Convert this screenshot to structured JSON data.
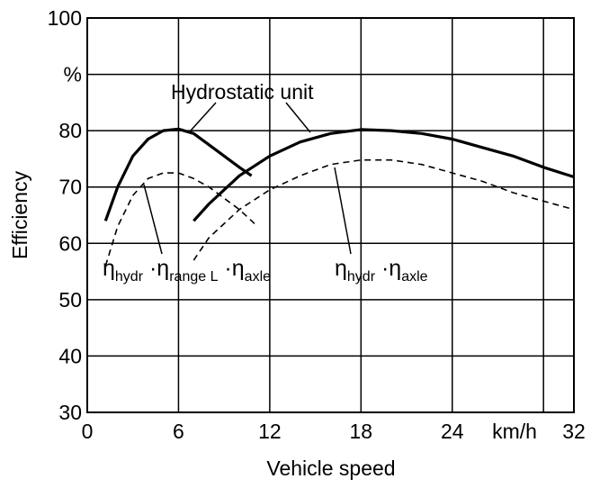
{
  "chart_data": {
    "type": "line",
    "xlabel": "Vehicle speed",
    "ylabel": "Efficiency",
    "x_unit_label": "km/h",
    "xlim": [
      0,
      32
    ],
    "ylim": [
      30,
      100
    ],
    "xticks": [
      0,
      6,
      12,
      18,
      24,
      32
    ],
    "xgrid": [
      6,
      12,
      18,
      24,
      30
    ],
    "yticks": [
      30,
      40,
      50,
      60,
      70,
      80,
      {
        "value": 90,
        "label": "%"
      },
      100
    ],
    "grid": true,
    "series": [
      {
        "color": "#000000",
        "style": "solid",
        "x": [
          1.2,
          2,
          3,
          4,
          5,
          6,
          7,
          8,
          9,
          10,
          10.8
        ],
        "values": [
          64,
          70,
          75.5,
          78.5,
          80,
          80.3,
          79.5,
          77.5,
          75.5,
          73.5,
          72
        ]
      },
      {
        "color": "#000000",
        "style": "solid",
        "x": [
          7,
          8,
          10,
          12,
          14,
          16,
          18,
          20,
          22,
          24,
          26,
          28,
          30,
          32
        ],
        "values": [
          64,
          67,
          72,
          75.5,
          78,
          79.5,
          80.2,
          80,
          79.5,
          78.5,
          77,
          75.5,
          73.5,
          71.8
        ]
      },
      {
        "color": "#000000",
        "style": "dashed",
        "x": [
          1.2,
          2,
          3,
          4,
          5,
          6,
          7,
          8,
          9,
          10,
          11
        ],
        "values": [
          56,
          63,
          68.5,
          71.5,
          72.5,
          72.5,
          71.5,
          70,
          68,
          66,
          63.5
        ]
      },
      {
        "color": "#000000",
        "style": "dashed",
        "x": [
          7,
          8,
          10,
          12,
          14,
          16,
          18,
          20,
          22,
          24,
          26,
          28,
          30,
          32
        ],
        "values": [
          57,
          61,
          66,
          69.5,
          72,
          74,
          74.8,
          74.8,
          74,
          72.5,
          71,
          69,
          67.5,
          66
        ]
      }
    ],
    "annotations": {
      "hydrostatic": "Hydrostatic unit",
      "low_range": [
        "η",
        "hydr",
        " ·η",
        "range L",
        " ·η",
        "axle"
      ],
      "high_range": [
        "η",
        "hydr",
        " ·η",
        "axle"
      ]
    }
  }
}
